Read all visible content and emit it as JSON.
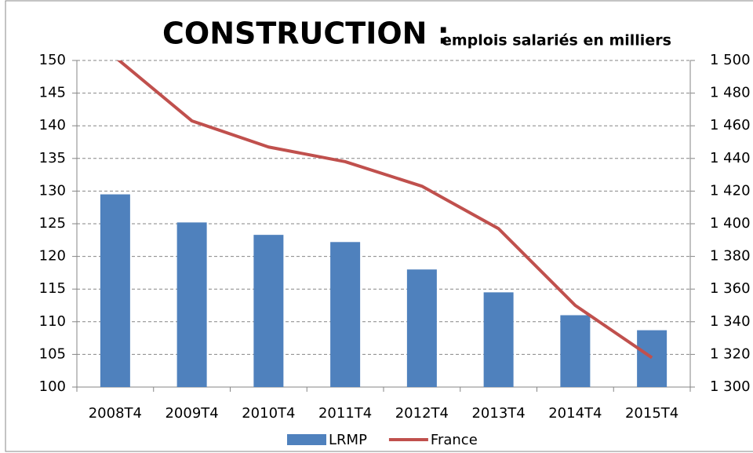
{
  "chart_data": {
    "type": "bar-line",
    "title": "CONSTRUCTION :",
    "subtitle": "emplois salariés en milliers",
    "categories": [
      "2008T4",
      "2009T4",
      "2010T4",
      "2011T4",
      "2012T4",
      "2013T4",
      "2014T4",
      "2015T4"
    ],
    "series": [
      {
        "name": "LRMP",
        "type": "bar",
        "color": "#4f81bd",
        "values": [
          129.5,
          125.2,
          123.3,
          122.2,
          118,
          114.5,
          111,
          108.7
        ]
      },
      {
        "name": "France",
        "type": "line",
        "axis": "y2",
        "color": "#c0504d",
        "values": [
          1502,
          1463,
          1447,
          1438,
          1423,
          1397,
          1350,
          1318
        ]
      }
    ],
    "ylim": [
      100,
      150
    ],
    "yticks": [
      100,
      105,
      110,
      115,
      120,
      125,
      130,
      135,
      140,
      145,
      150
    ],
    "y2lim": [
      1300,
      1500
    ],
    "y2ticks": [
      {
        "value": 1300,
        "label": "1 300"
      },
      {
        "value": 1320,
        "label": "1 320"
      },
      {
        "value": 1340,
        "label": "1 340"
      },
      {
        "value": 1360,
        "label": "1 360"
      },
      {
        "value": 1380,
        "label": "1 380"
      },
      {
        "value": 1400,
        "label": "1 400"
      },
      {
        "value": 1420,
        "label": "1 420"
      },
      {
        "value": 1440,
        "label": "1 440"
      },
      {
        "value": 1460,
        "label": "1 460"
      },
      {
        "value": 1480,
        "label": "1 480"
      },
      {
        "value": 1500,
        "label": "1 500"
      }
    ],
    "grid": true,
    "legend": "bottom"
  }
}
